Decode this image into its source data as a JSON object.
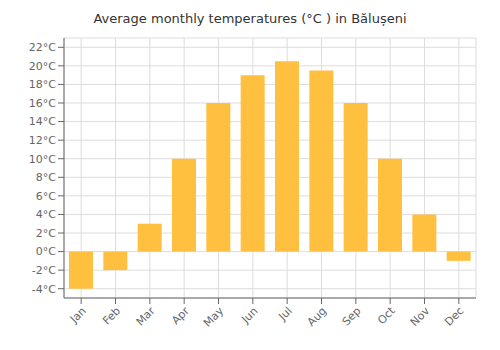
{
  "chart_data": {
    "type": "bar",
    "title": "Average monthly temperatures (°C ) in Bălușeni",
    "categories": [
      "Jan",
      "Feb",
      "Mar",
      "Apr",
      "May",
      "Jun",
      "Jul",
      "Aug",
      "Sep",
      "Oct",
      "Nov",
      "Dec"
    ],
    "values": [
      -4,
      -2,
      3,
      10,
      16,
      19,
      20.5,
      19.5,
      16,
      10,
      4,
      -1
    ],
    "color": "#FFC040",
    "ylim": [
      -5,
      23
    ],
    "yticks": [
      {
        "value": -4,
        "label": "-4°C"
      },
      {
        "value": -2,
        "label": "-2°C"
      },
      {
        "value": 0,
        "label": "0°C"
      },
      {
        "value": 2,
        "label": "2°C"
      },
      {
        "value": 4,
        "label": "4°C"
      },
      {
        "value": 6,
        "label": "6°C"
      },
      {
        "value": 8,
        "label": "8°C"
      },
      {
        "value": 10,
        "label": "10°C"
      },
      {
        "value": 12,
        "label": "12°C"
      },
      {
        "value": 14,
        "label": "14°C"
      },
      {
        "value": 16,
        "label": "16°C"
      },
      {
        "value": 18,
        "label": "18°C"
      },
      {
        "value": 20,
        "label": "20°C"
      },
      {
        "value": 22,
        "label": "22°C"
      }
    ],
    "grid": true
  }
}
